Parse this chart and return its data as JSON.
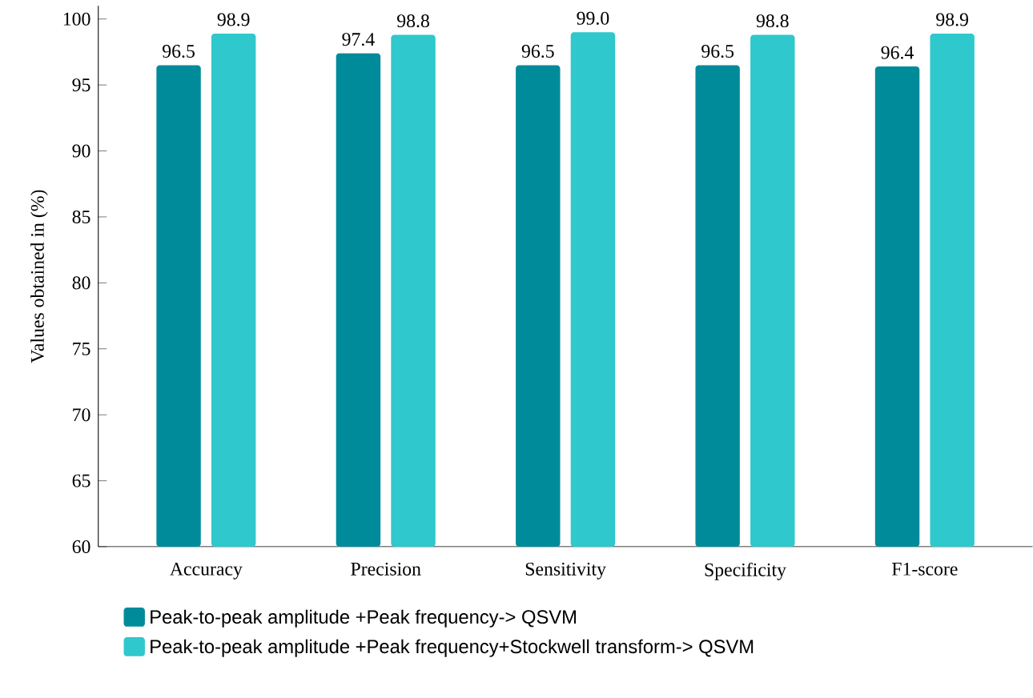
{
  "chart_data": {
    "type": "bar",
    "ylabel": "Values obtained in (%)",
    "categories": [
      "Accuracy",
      "Precision",
      "Sensitivity",
      "Specificity",
      "F1-score"
    ],
    "series": [
      {
        "name": "Peak-to-peak amplitude +Peak frequency-> QSVM",
        "color": "#008b9b",
        "values": [
          96.5,
          97.4,
          96.5,
          96.5,
          96.4
        ],
        "value_labels": [
          "96.5",
          "97.4",
          "96.5",
          "96.5",
          "96.4"
        ]
      },
      {
        "name": "Peak-to-peak amplitude +Peak frequency+Stockwell transform-> QSVM",
        "color": "#2fc8cc",
        "values": [
          98.9,
          98.8,
          99.0,
          98.8,
          98.9
        ],
        "value_labels": [
          "98.9",
          "98.8",
          "99.0",
          "98.8",
          "98.9"
        ]
      }
    ],
    "ylim": [
      60,
      101
    ],
    "yticks": [
      60,
      65,
      70,
      75,
      80,
      85,
      90,
      95,
      100
    ],
    "grid": false,
    "legend": "bottom"
  }
}
